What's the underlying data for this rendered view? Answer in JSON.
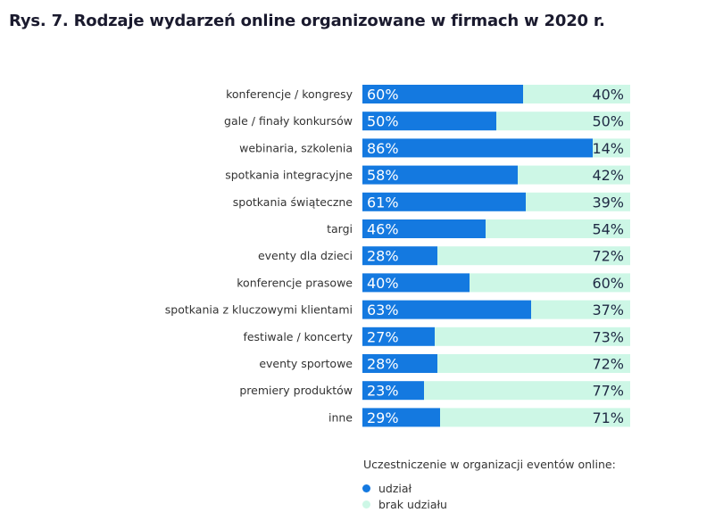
{
  "chart_data": {
    "type": "bar",
    "stacked": true,
    "orientation": "horizontal",
    "title": "Rys. 7. Rodzaje wydarzeń online organizowane w firmach w 2020 r.",
    "categories": [
      "konferencje / kongresy",
      "gale / finały konkursów",
      "webinaria, szkolenia",
      "spotkania integracyjne",
      "spotkania świąteczne",
      "targi",
      "eventy dla dzieci",
      "konferencje prasowe",
      "spotkania z kluczowymi klientami",
      "festiwale / koncerty",
      "eventy sportowe",
      "premiery produktów",
      "inne"
    ],
    "series": [
      {
        "name": "udział",
        "values": [
          60,
          50,
          86,
          58,
          61,
          46,
          28,
          40,
          63,
          27,
          28,
          23,
          29
        ],
        "color": "#1479e0"
      },
      {
        "name": "brak udziału",
        "values": [
          40,
          50,
          14,
          42,
          39,
          54,
          72,
          60,
          37,
          73,
          72,
          77,
          71
        ],
        "color": "#cdf7e6"
      }
    ],
    "value_suffix": "%",
    "legend_title": "Uczestniczenie w organizacji eventów online:",
    "legend_position": "bottom",
    "xlim": [
      0,
      100
    ]
  }
}
